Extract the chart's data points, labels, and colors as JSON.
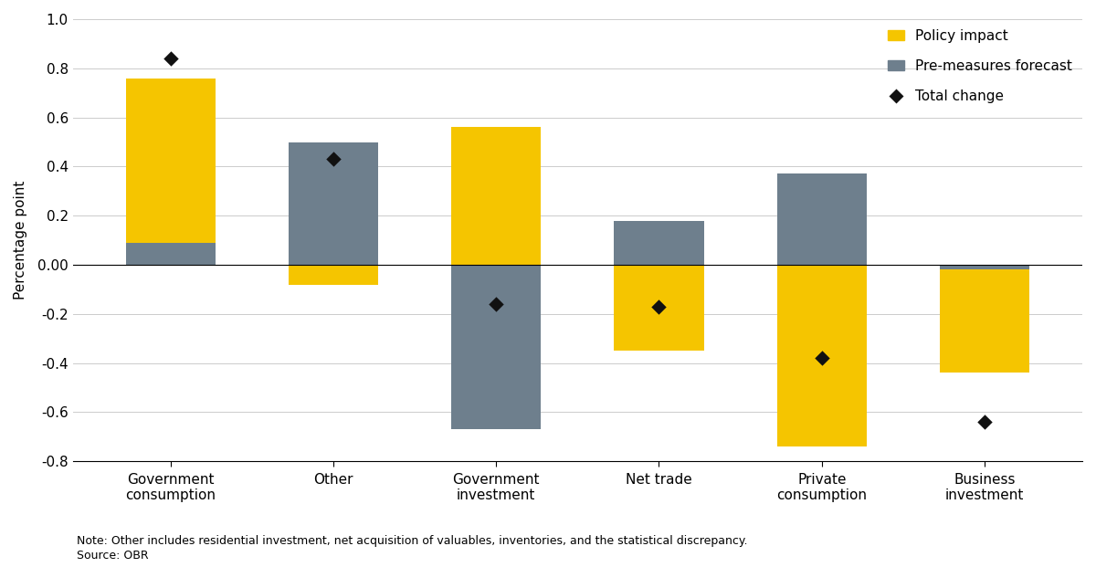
{
  "categories": [
    "Government\nconsumption",
    "Other",
    "Government\ninvestment",
    "Net trade",
    "Private\nconsumption",
    "Business\ninvestment"
  ],
  "pre_measures": [
    0.09,
    0.5,
    -0.67,
    0.18,
    0.37,
    -0.02
  ],
  "policy_impact": [
    0.76,
    -0.08,
    0.56,
    -0.35,
    -0.74,
    -0.44
  ],
  "total_change": [
    0.84,
    0.43,
    -0.16,
    -0.17,
    -0.38,
    -0.64
  ],
  "color_policy": "#F5C500",
  "color_pre": "#6E7F8D",
  "color_total": "#111111",
  "ylabel": "Percentage point",
  "ylim_min": -0.8,
  "ylim_max": 1.0,
  "yticks": [
    -0.8,
    -0.6,
    -0.4,
    -0.2,
    0.0,
    0.2,
    0.4,
    0.6,
    0.8,
    1.0
  ],
  "legend_policy": "Policy impact",
  "legend_pre": "Pre-measures forecast",
  "legend_total": "Total change",
  "note": "Note: Other includes residential investment, net acquisition of valuables, inventories, and the statistical discrepancy.",
  "source": "Source: OBR"
}
